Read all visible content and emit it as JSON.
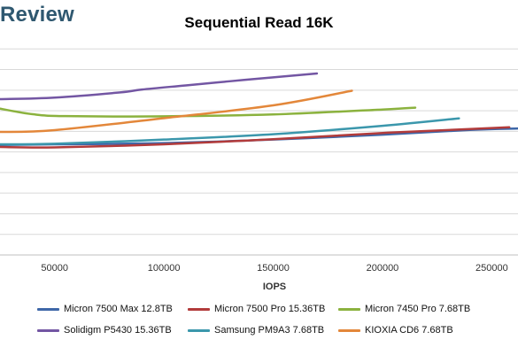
{
  "header": {
    "brand": "Review"
  },
  "chart_data": {
    "type": "line",
    "title": "Sequential Read 16K",
    "xlabel": "IOPS",
    "ylabel": "",
    "xlim": [
      25000,
      262000
    ],
    "ylim": [
      0,
      11
    ],
    "x_ticks": [
      50000,
      100000,
      150000,
      200000,
      250000
    ],
    "x_tick_labels": [
      "50000",
      "100000",
      "150000",
      "200000",
      "250000"
    ],
    "y_grid": [
      1,
      2,
      3,
      4,
      5,
      6,
      7,
      8,
      9,
      10
    ],
    "grid": true,
    "legend_position": "bottom",
    "series": [
      {
        "name": "Micron 7500 Max 12.8TB",
        "color": "#3e67a8",
        "points": [
          [
            25000,
            5.34
          ],
          [
            50000,
            5.37
          ],
          [
            100000,
            5.43
          ],
          [
            150000,
            5.6
          ],
          [
            200000,
            5.84
          ],
          [
            240000,
            6.07
          ],
          [
            262000,
            6.14
          ]
        ]
      },
      {
        "name": "Micron 7500 Pro 15.36TB",
        "color": "#b23b3b",
        "points": [
          [
            25000,
            5.24
          ],
          [
            50000,
            5.22
          ],
          [
            100000,
            5.37
          ],
          [
            150000,
            5.62
          ],
          [
            200000,
            5.92
          ],
          [
            240000,
            6.11
          ],
          [
            258000,
            6.2
          ]
        ]
      },
      {
        "name": "Micron 7450 Pro 7.68TB",
        "color": "#8bb23e",
        "points": [
          [
            25000,
            7.1
          ],
          [
            40000,
            6.83
          ],
          [
            55000,
            6.74
          ],
          [
            100000,
            6.73
          ],
          [
            150000,
            6.82
          ],
          [
            200000,
            7.06
          ],
          [
            215000,
            7.15
          ]
        ]
      },
      {
        "name": "Solidigm P5430 15.36TB",
        "color": "#7356a3",
        "points": [
          [
            25000,
            7.56
          ],
          [
            50000,
            7.64
          ],
          [
            80000,
            7.89
          ],
          [
            90000,
            8.03
          ],
          [
            110000,
            8.23
          ],
          [
            130000,
            8.43
          ],
          [
            150000,
            8.62
          ],
          [
            170000,
            8.81
          ]
        ]
      },
      {
        "name": "Samsung PM9A3 7.68TB",
        "color": "#3b97ac",
        "points": [
          [
            25000,
            5.37
          ],
          [
            50000,
            5.4
          ],
          [
            100000,
            5.6
          ],
          [
            150000,
            5.86
          ],
          [
            200000,
            6.27
          ],
          [
            235000,
            6.63
          ]
        ]
      },
      {
        "name": "KIOXIA CD6 7.68TB",
        "color": "#e3873a",
        "points": [
          [
            25000,
            5.97
          ],
          [
            50000,
            6.06
          ],
          [
            100000,
            6.64
          ],
          [
            150000,
            7.26
          ],
          [
            186000,
            7.97
          ]
        ]
      }
    ]
  }
}
